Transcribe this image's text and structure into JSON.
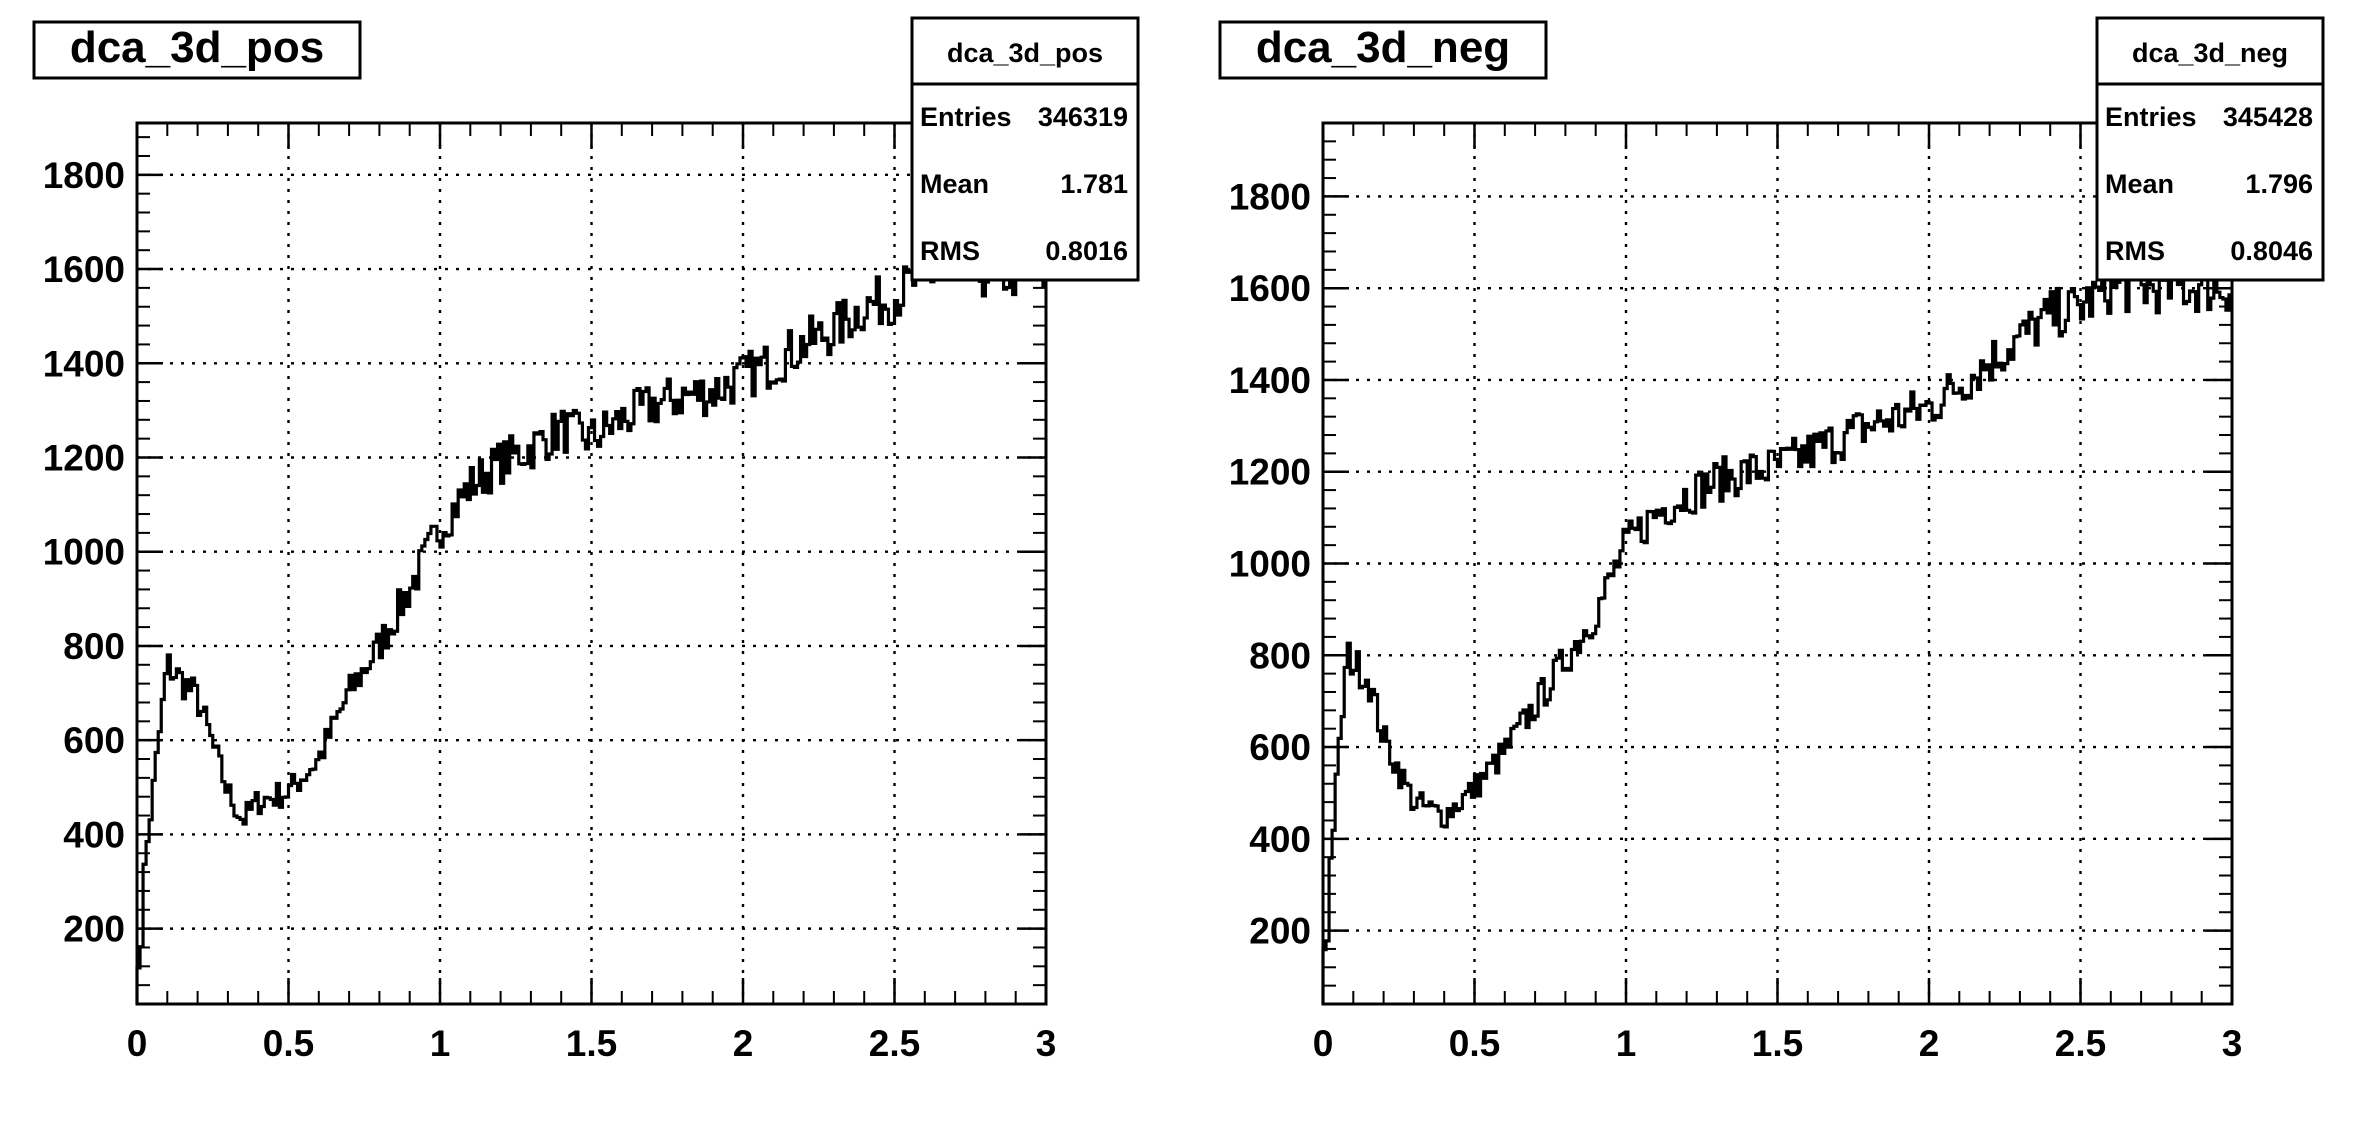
{
  "footer": "",
  "chart_data": [
    {
      "type": "histogram",
      "title": "dca_3d_pos",
      "stats": {
        "name": "dca_3d_pos",
        "entries_label": "Entries",
        "entries": "346319",
        "mean_label": "Mean",
        "mean": "1.781",
        "rms_label": "RMS",
        "rms": "0.8016"
      },
      "xlim": [
        0,
        3
      ],
      "ylim": [
        40,
        1910
      ],
      "xticks": [
        0,
        0.5,
        1,
        1.5,
        2,
        2.5,
        3
      ],
      "xtick_labels": [
        "0",
        "0.5",
        "1",
        "1.5",
        "2",
        "2.5",
        "3"
      ],
      "yticks": [
        200,
        400,
        600,
        800,
        1000,
        1200,
        1400,
        1600,
        1800
      ],
      "ytick_labels": [
        "200",
        "400",
        "600",
        "800",
        "1000",
        "1200",
        "1400",
        "1600",
        "1800"
      ],
      "grid": true,
      "legend": "top-right",
      "x": [
        0,
        0.1,
        0.2,
        0.3,
        0.35,
        0.4,
        0.5,
        0.6,
        0.7,
        0.8,
        0.9,
        1.0,
        1.1,
        1.2,
        1.3,
        1.4,
        1.5,
        1.6,
        1.7,
        1.8,
        1.9,
        2.0,
        2.1,
        2.2,
        2.3,
        2.4,
        2.5,
        2.6
      ],
      "values": [
        180,
        760,
        690,
        490,
        430,
        470,
        490,
        560,
        700,
        800,
        920,
        1050,
        1140,
        1190,
        1220,
        1260,
        1240,
        1280,
        1310,
        1330,
        1340,
        1370,
        1400,
        1440,
        1470,
        1520,
        1540,
        1590
      ]
    },
    {
      "type": "histogram",
      "title": "dca_3d_neg",
      "stats": {
        "name": "dca_3d_neg",
        "entries_label": "Entries",
        "entries": "345428",
        "mean_label": "Mean",
        "mean": "1.796",
        "rms_label": "RMS",
        "rms": "0.8046"
      },
      "xlim": [
        0,
        3
      ],
      "ylim": [
        40,
        1960
      ],
      "xticks": [
        0,
        0.5,
        1,
        1.5,
        2,
        2.5,
        3
      ],
      "xtick_labels": [
        "0",
        "0.5",
        "1",
        "1.5",
        "2",
        "2.5",
        "3"
      ],
      "yticks": [
        200,
        400,
        600,
        800,
        1000,
        1200,
        1400,
        1600,
        1800
      ],
      "ytick_labels": [
        "200",
        "400",
        "600",
        "800",
        "1000",
        "1200",
        "1400",
        "1600",
        "1800"
      ],
      "grid": true,
      "legend": "top-right",
      "x": [
        0,
        0.08,
        0.15,
        0.2,
        0.3,
        0.4,
        0.5,
        0.6,
        0.7,
        0.8,
        0.9,
        1.0,
        1.1,
        1.2,
        1.3,
        1.4,
        1.5,
        1.6,
        1.7,
        1.8,
        1.9,
        2.0,
        2.1,
        2.2,
        2.3,
        2.4,
        2.5,
        2.6
      ],
      "values": [
        150,
        800,
        750,
        620,
        480,
        450,
        510,
        590,
        690,
        790,
        890,
        1040,
        1110,
        1150,
        1180,
        1200,
        1210,
        1240,
        1270,
        1300,
        1320,
        1340,
        1390,
        1440,
        1490,
        1540,
        1560,
        1600
      ]
    }
  ]
}
